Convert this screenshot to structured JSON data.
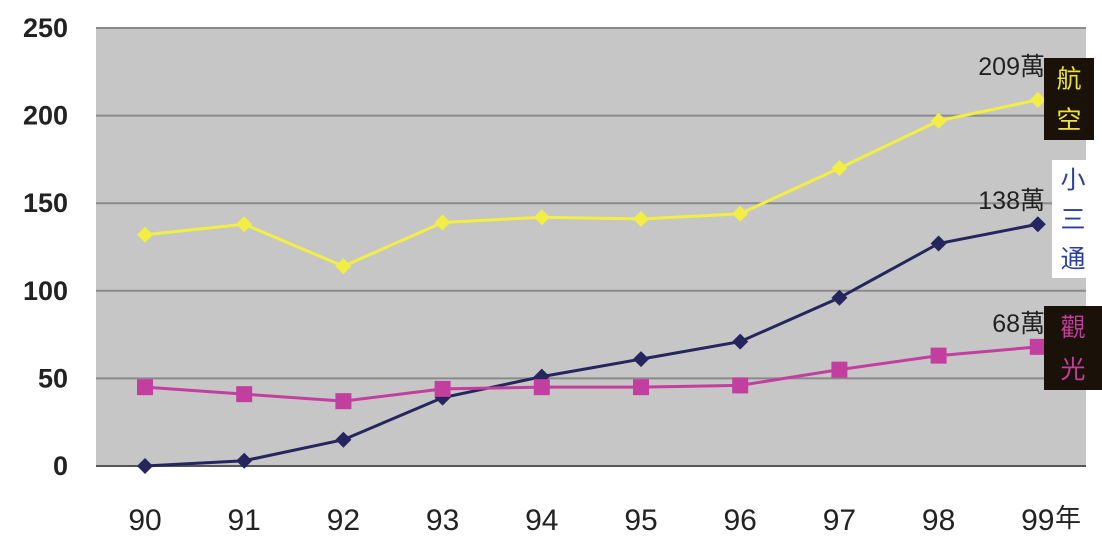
{
  "chart_data": {
    "type": "line",
    "categories": [
      "90",
      "91",
      "92",
      "93",
      "94",
      "95",
      "96",
      "97",
      "98",
      "99"
    ],
    "x_unit": "年",
    "ylim": [
      0,
      250
    ],
    "yticks": [
      0,
      50,
      100,
      150,
      200,
      250
    ],
    "grid": true,
    "series": [
      {
        "name": "航空",
        "color": "#f2ee44",
        "marker": "diamond",
        "values": [
          132,
          138,
          114,
          139,
          142,
          141,
          144,
          170,
          197,
          209
        ],
        "end_label": "209萬",
        "legend_bg": "#1a1208",
        "legend_fg": "#ece23a"
      },
      {
        "name": "小三通",
        "color": "#25265e",
        "marker": "diamond",
        "values": [
          0,
          3,
          15,
          39,
          51,
          61,
          71,
          96,
          127,
          138
        ],
        "end_label": "138萬",
        "legend_bg": "#ffffff",
        "legend_fg": "#2a3fa0"
      },
      {
        "name": "觀光",
        "color": "#c23f9f",
        "marker": "square",
        "values": [
          45,
          41,
          37,
          44,
          45,
          45,
          46,
          55,
          63,
          68
        ],
        "end_label": "68萬",
        "legend_bg": "#1a1208",
        "legend_fg": "#c23f9f"
      }
    ]
  }
}
